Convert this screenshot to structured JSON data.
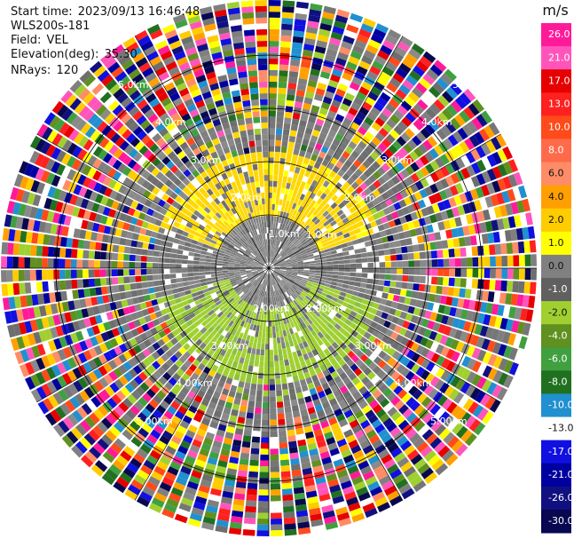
{
  "header": {
    "start_time_label": "Start time:",
    "start_time": "2023/09/13 16:46:48",
    "instrument": "WLS200s-181",
    "field_label": "Field:",
    "field": "VEL",
    "elevation_label": "Elevation(deg):",
    "elevation": "35.30",
    "nrays_label": "NRays:",
    "nrays": "120"
  },
  "colorbar": {
    "unit": "m/s",
    "ticks": [
      "26.0",
      "21.0",
      "17.0",
      "13.0",
      "10.0",
      "8.0",
      "6.0",
      "4.0",
      "2.0",
      "1.0",
      "0.0",
      "-1.0",
      "-2.0",
      "-4.0",
      "-6.0",
      "-8.0",
      "-10.0",
      "-13.0",
      "-17.0",
      "-21.0",
      "-26.0",
      "-30.0"
    ],
    "colors": [
      "#ff1a9a",
      "#ff55bb",
      "#e60000",
      "#ff2020",
      "#ff4a1a",
      "#ff6a4a",
      "#ff8c66",
      "#ffa000",
      "#ffcc00",
      "#ffff00",
      "#808080",
      "#606060",
      "#a0d030",
      "#609020",
      "#40a040",
      "#207020",
      "#2090d0",
      "#ffffff",
      "#1010e0",
      "#0000a0",
      "#101080",
      "#080850"
    ]
  },
  "chart_data": {
    "type": "ppi",
    "field": "VEL",
    "unit": "m/s",
    "nrays": 120,
    "elevation_deg": 35.3,
    "range_ring_labels": [
      "1.0km",
      "1.0km",
      "2.0km",
      "2.0km",
      "3.0km",
      "3.0km",
      "4.0km",
      "4.0km",
      "5.0km",
      "5.0km",
      "2.00km",
      "2.00km",
      "3.00km",
      "3.00km",
      "4.00km",
      "4.00km",
      "5.00km",
      "5.00km"
    ],
    "range_rings_km": [
      1,
      2,
      3,
      4,
      5
    ],
    "colorscale_min": -30.0,
    "colorscale_max": 26.0
  }
}
